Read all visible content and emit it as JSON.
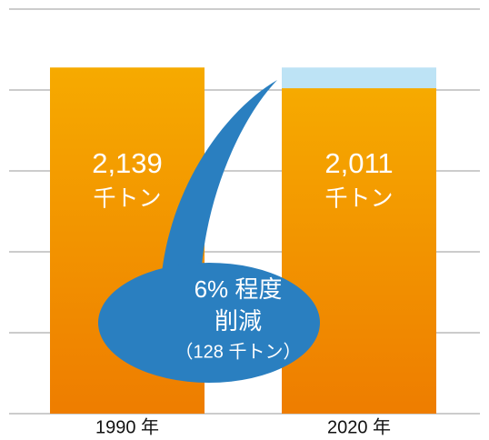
{
  "chart_data": {
    "type": "bar",
    "stacked": true,
    "categories": [
      "1990 年",
      "2020 年"
    ],
    "series": [
      {
        "color": "#f29400",
        "values": [
          2139,
          2011
        ],
        "value_labels": [
          "2,139",
          "2,011"
        ]
      },
      {
        "color": "#bde3f5",
        "values": [
          null,
          128
        ]
      }
    ],
    "unit_label": "千トン",
    "annotation": {
      "lines": [
        "6% 程度",
        "削減",
        "（128 千トン）"
      ],
      "color": "#2a7fc0"
    },
    "ylim": [
      0,
      2500
    ],
    "yticks": [
      0,
      500,
      1000,
      1500,
      2000,
      2500
    ],
    "grid": true
  }
}
